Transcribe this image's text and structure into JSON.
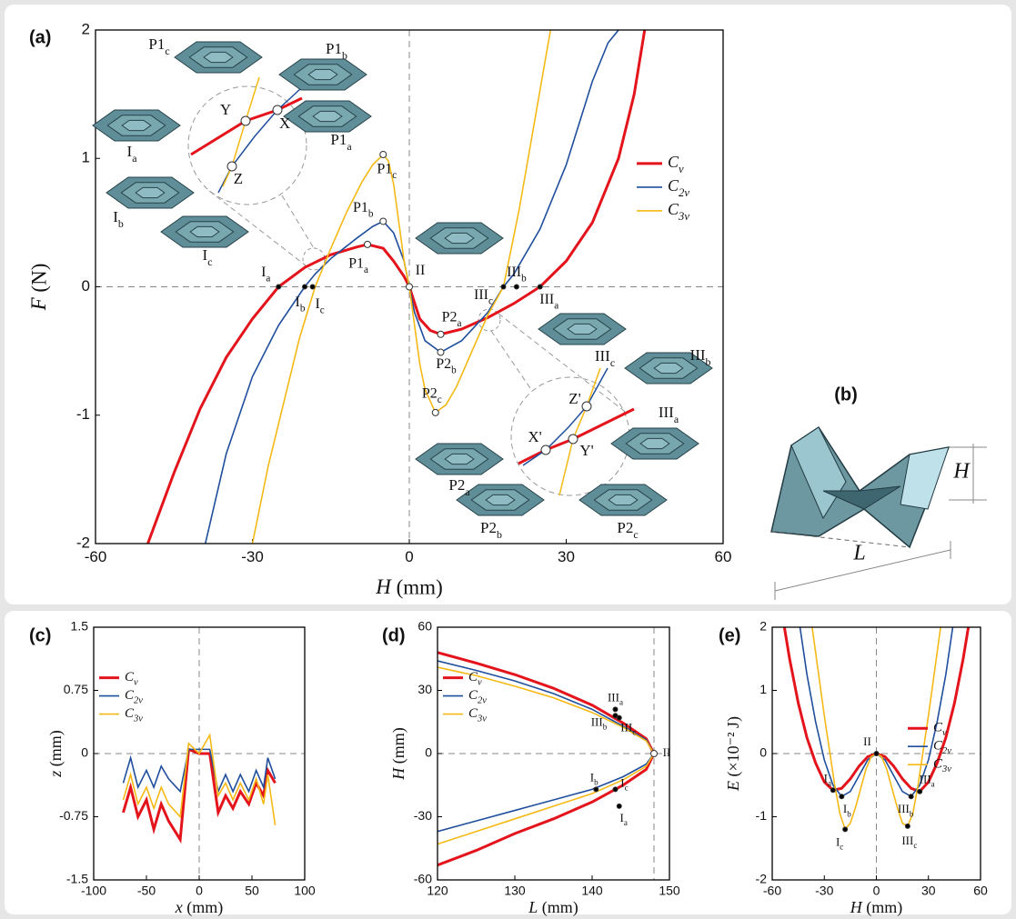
{
  "chart_data": [
    {
      "type": "line",
      "panel_label": "(a)",
      "xlabel": "H (mm)",
      "ylabel": "F (N)",
      "xlim": [
        -60,
        60
      ],
      "ylim": [
        -2,
        2
      ],
      "xticks": [
        -60,
        -30,
        0,
        30,
        60
      ],
      "yticks": [
        -2,
        -1,
        0,
        1,
        2
      ],
      "zero_lines": true,
      "legend": "upper right",
      "series": [
        {
          "name": "Cv",
          "color": "#e3141b",
          "x": [
            -50,
            -45,
            -40,
            -35,
            -30,
            -25,
            -20,
            -15,
            -10,
            -8,
            -5,
            -3,
            -1,
            0,
            2,
            4,
            6,
            10,
            15,
            20,
            25,
            30,
            35,
            40,
            43,
            45
          ],
          "values": [
            -2,
            -1.45,
            -0.95,
            -0.55,
            -0.25,
            0,
            0.15,
            0.25,
            0.31,
            0.33,
            0.3,
            0.2,
            0.08,
            0,
            -0.25,
            -0.34,
            -0.37,
            -0.33,
            -0.24,
            -0.13,
            0,
            0.2,
            0.5,
            1.0,
            1.5,
            2
          ]
        },
        {
          "name": "C2v",
          "color": "#1f4e9c",
          "x": [
            -39,
            -35,
            -30,
            -25,
            -20,
            -18,
            -15,
            -10,
            -7,
            -5,
            -3,
            -1,
            0,
            1,
            3,
            6,
            10,
            15,
            18,
            20,
            25,
            30,
            35,
            38,
            40
          ],
          "values": [
            -2,
            -1.3,
            -0.7,
            -0.3,
            0,
            0.1,
            0.22,
            0.38,
            0.47,
            0.51,
            0.42,
            0.2,
            0,
            -0.2,
            -0.42,
            -0.51,
            -0.42,
            -0.2,
            0,
            0.1,
            0.45,
            0.95,
            1.6,
            1.9,
            2
          ]
        },
        {
          "name": "C3v",
          "color": "#f5b915",
          "x": [
            -30,
            -27,
            -24,
            -21,
            -18,
            -15,
            -12,
            -9,
            -7,
            -5,
            -4,
            -3,
            -2,
            -1,
            0,
            1,
            2,
            3,
            5,
            7,
            9,
            12,
            15,
            18,
            21,
            24,
            27
          ],
          "values": [
            -2,
            -1.4,
            -0.9,
            -0.4,
            0,
            0.3,
            0.58,
            0.82,
            0.95,
            1.03,
            0.98,
            0.8,
            0.5,
            0.2,
            0,
            -0.3,
            -0.6,
            -0.8,
            -0.98,
            -0.92,
            -0.78,
            -0.5,
            -0.22,
            0,
            0.6,
            1.3,
            2
          ]
        }
      ],
      "annotations": [
        {
          "label": "Ia",
          "x": -25,
          "y": 0,
          "marker": "dot"
        },
        {
          "label": "Ib",
          "x": -20,
          "y": 0,
          "marker": "dot"
        },
        {
          "label": "Ic",
          "x": -18.5,
          "y": 0,
          "marker": "dot"
        },
        {
          "label": "II",
          "x": 0,
          "y": 0,
          "marker": "open"
        },
        {
          "label": "P1a",
          "x": -8,
          "y": 0.33,
          "marker": "open"
        },
        {
          "label": "P1b",
          "x": -5,
          "y": 0.51,
          "marker": "open"
        },
        {
          "label": "P1c",
          "x": -5,
          "y": 1.03,
          "marker": "open"
        },
        {
          "label": "P2a",
          "x": 6,
          "y": -0.37,
          "marker": "open"
        },
        {
          "label": "P2b",
          "x": 6,
          "y": -0.51,
          "marker": "open"
        },
        {
          "label": "P2c",
          "x": 5,
          "y": -0.98,
          "marker": "open"
        },
        {
          "label": "IIIa",
          "x": 25,
          "y": 0,
          "marker": "dot"
        },
        {
          "label": "IIIb",
          "x": 20.5,
          "y": 0,
          "marker": "dot"
        },
        {
          "label": "IIIc",
          "x": 18,
          "y": 0,
          "marker": "dot"
        }
      ],
      "shape_labels": [
        "P1c",
        "P1b",
        "P1a",
        "Ia",
        "Ib",
        "Ic",
        "IIIc",
        "IIIb",
        "IIIa",
        "P2a",
        "P2b",
        "P2c",
        "Y",
        "X",
        "Z",
        "Z'",
        "X'",
        "Y'"
      ]
    },
    {
      "type": "line",
      "panel_label": "(c)",
      "xlabel": "x (mm)",
      "ylabel": "z (mm)",
      "xlim": [
        -100,
        100
      ],
      "ylim": [
        -1.5,
        1.5
      ],
      "xticks": [
        -100,
        -50,
        0,
        50,
        100
      ],
      "yticks": [
        -1.5,
        -0.75,
        0,
        0.75,
        1.5
      ],
      "zero_lines": true,
      "legend": "upper left",
      "x": [
        -72,
        -65,
        -58,
        -50,
        -43,
        -36,
        -29,
        -18,
        -10,
        0,
        10,
        18,
        25,
        32,
        39,
        47,
        54,
        61,
        65,
        72
      ],
      "series": [
        {
          "name": "Cv",
          "color": "#e3141b",
          "values": [
            -0.7,
            -0.4,
            -0.75,
            -0.55,
            -0.9,
            -0.6,
            -0.8,
            -1.02,
            0.05,
            0.0,
            0.0,
            -0.7,
            -0.5,
            -0.65,
            -0.45,
            -0.6,
            -0.35,
            -0.5,
            -0.2,
            -0.35
          ]
        },
        {
          "name": "C2v",
          "color": "#1f4e9c",
          "values": [
            -0.35,
            -0.05,
            -0.4,
            -0.2,
            -0.4,
            -0.15,
            -0.3,
            -0.45,
            0.05,
            0.05,
            0.05,
            -0.45,
            -0.25,
            -0.45,
            -0.25,
            -0.45,
            -0.2,
            -0.4,
            -0.05,
            -0.3
          ]
        },
        {
          "name": "C3v",
          "color": "#f5b915",
          "values": [
            -0.55,
            -0.25,
            -0.6,
            -0.4,
            -0.65,
            -0.4,
            -0.6,
            -0.75,
            0.12,
            0.0,
            0.22,
            -0.5,
            -0.35,
            -0.55,
            -0.35,
            -0.55,
            -0.3,
            -0.6,
            -0.25,
            -0.85
          ]
        }
      ]
    },
    {
      "type": "line",
      "panel_label": "(d)",
      "xlabel": "L (mm)",
      "ylabel": "H (mm)",
      "xlim": [
        120,
        150
      ],
      "ylim": [
        -60,
        60
      ],
      "xticks": [
        120,
        130,
        140,
        150
      ],
      "yticks": [
        -60,
        -30,
        0,
        30,
        60
      ],
      "hline": 0,
      "vline": 148,
      "legend": "upper left",
      "series": [
        {
          "name": "Cv",
          "color": "#e3141b",
          "x": [
            120,
            125,
            130,
            135,
            140,
            144,
            147,
            148,
            147,
            144,
            140,
            135,
            130,
            125,
            120
          ],
          "values": [
            48,
            43,
            37.5,
            31,
            23,
            14.5,
            7,
            0,
            -7.5,
            -15,
            -23,
            -31,
            -38,
            -46,
            -53
          ]
        },
        {
          "name": "C2v",
          "color": "#1f4e9c",
          "x": [
            120,
            125,
            130,
            135,
            140,
            144,
            147,
            148,
            147,
            144,
            140,
            135,
            130,
            125,
            120
          ],
          "values": [
            44,
            39.5,
            34.5,
            28.5,
            21,
            13,
            6.5,
            0,
            -5,
            -11,
            -17,
            -22,
            -27,
            -32,
            -37
          ]
        },
        {
          "name": "C3v",
          "color": "#f5b915",
          "x": [
            120,
            125,
            130,
            135,
            140,
            144,
            147,
            148,
            147,
            144,
            140,
            135,
            130,
            125,
            120
          ],
          "values": [
            41,
            37,
            32,
            26.5,
            19.5,
            12.5,
            6,
            0,
            -6,
            -12.5,
            -19,
            -25,
            -31,
            -37,
            -43
          ]
        }
      ],
      "annotations": [
        {
          "label": "IIIa",
          "x": 143,
          "y": 21,
          "marker": "dot"
        },
        {
          "label": "IIIb",
          "x": 143,
          "y": 18,
          "marker": "dot"
        },
        {
          "label": "IIIc",
          "x": 143.5,
          "y": 17,
          "marker": "dot"
        },
        {
          "label": "Ib",
          "x": 140.5,
          "y": -17,
          "marker": "dot"
        },
        {
          "label": "Ic",
          "x": 143,
          "y": -17,
          "marker": "dot"
        },
        {
          "label": "Ia",
          "x": 143.5,
          "y": -25,
          "marker": "dot"
        },
        {
          "label": "II",
          "x": 148,
          "y": 0,
          "marker": "open"
        }
      ]
    },
    {
      "type": "line",
      "panel_label": "(e)",
      "xlabel": "H (mm)",
      "ylabel": "E (×10⁻² J)",
      "xlim": [
        -60,
        60
      ],
      "ylim": [
        -2,
        2
      ],
      "xticks": [
        -60,
        -30,
        0,
        30,
        60
      ],
      "yticks": [
        -2,
        -1,
        0,
        1,
        2
      ],
      "zero_lines": true,
      "legend": "center right",
      "series": [
        {
          "name": "Cv",
          "color": "#e3141b",
          "x": [
            -53,
            -50,
            -45,
            -40,
            -35,
            -30,
            -25,
            -20,
            -15,
            -10,
            -5,
            0,
            5,
            10,
            15,
            20,
            25,
            30,
            35,
            40,
            45,
            50,
            53
          ],
          "values": [
            2,
            1.5,
            0.8,
            0.25,
            -0.15,
            -0.45,
            -0.58,
            -0.55,
            -0.4,
            -0.2,
            -0.05,
            0,
            -0.05,
            -0.2,
            -0.4,
            -0.55,
            -0.6,
            -0.45,
            -0.15,
            0.25,
            0.8,
            1.5,
            2
          ]
        },
        {
          "name": "C2v",
          "color": "#1f4e9c",
          "x": [
            -44,
            -40,
            -35,
            -30,
            -25,
            -20,
            -15,
            -10,
            -5,
            0,
            5,
            10,
            15,
            20,
            25,
            30,
            35,
            40,
            44
          ],
          "values": [
            2,
            1.25,
            0.5,
            -0.1,
            -0.5,
            -0.68,
            -0.6,
            -0.35,
            -0.1,
            0,
            -0.1,
            -0.35,
            -0.6,
            -0.68,
            -0.5,
            -0.1,
            0.5,
            1.25,
            2
          ]
        },
        {
          "name": "C3v",
          "color": "#f5b915",
          "x": [
            -37,
            -33,
            -30,
            -27,
            -24,
            -21,
            -18,
            -15,
            -12,
            -9,
            -6,
            -3,
            0,
            3,
            6,
            9,
            12,
            15,
            18,
            21,
            24,
            27,
            30,
            33,
            37
          ],
          "values": [
            2,
            1.2,
            0.6,
            0.05,
            -0.5,
            -0.95,
            -1.2,
            -1.1,
            -0.85,
            -0.55,
            -0.25,
            -0.05,
            0,
            -0.05,
            -0.25,
            -0.55,
            -0.85,
            -1.1,
            -1.15,
            -0.95,
            -0.5,
            0.05,
            0.6,
            1.2,
            2
          ]
        }
      ],
      "annotations": [
        {
          "label": "Ia",
          "x": -25,
          "y": -0.58,
          "marker": "dot"
        },
        {
          "label": "Ib",
          "x": -20,
          "y": -0.68,
          "marker": "dot"
        },
        {
          "label": "Ic",
          "x": -18,
          "y": -1.2,
          "marker": "dot"
        },
        {
          "label": "II",
          "x": 0,
          "y": 0,
          "marker": "dot"
        },
        {
          "label": "IIIa",
          "x": 25,
          "y": -0.6,
          "marker": "dot"
        },
        {
          "label": "IIIb",
          "x": 20,
          "y": -0.68,
          "marker": "dot"
        },
        {
          "label": "IIIc",
          "x": 18,
          "y": -1.15,
          "marker": "dot"
        }
      ]
    }
  ],
  "diagram": {
    "panel_label": "(b)",
    "labels": [
      "H",
      "L"
    ]
  }
}
